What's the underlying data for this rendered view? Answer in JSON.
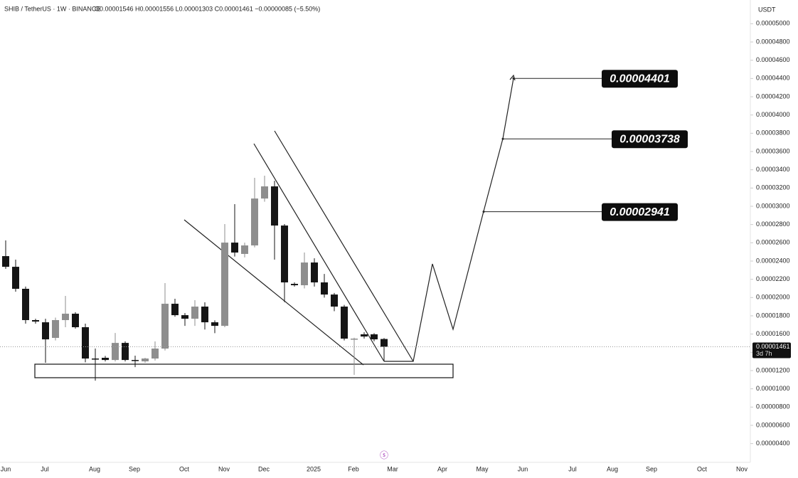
{
  "chart_data": {
    "type": "candlestick",
    "title": "SHIB / TetherUS · 1W · BINANCE",
    "ohlc_label": "O0.00001546 H0.00001556 L0.00001303 C0.00001461 −0.00000085 (−5.50%)",
    "currency": "USDT",
    "up_color": "#8e8e8e",
    "down_color": "#151515",
    "ohlc": [
      [
        2.454e-05,
        2.626e-05,
        2.314e-05,
        2.337e-05
      ],
      [
        2.337e-05,
        2.415e-05,
        2.064e-05,
        2.096e-05
      ],
      [
        2.096e-05,
        2.12e-05,
        1.714e-05,
        1.753e-05
      ],
      [
        1.753e-05,
        1.768e-05,
        1.714e-05,
        1.737e-05
      ],
      [
        1.729e-05,
        1.768e-05,
        1.285e-05,
        1.542e-05
      ],
      [
        1.558e-05,
        1.78e-05,
        1.53e-05,
        1.753e-05
      ],
      [
        1.753e-05,
        2.018e-05,
        1.675e-05,
        1.823e-05
      ],
      [
        1.823e-05,
        1.84e-05,
        1.66e-05,
        1.675e-05
      ],
      [
        1.675e-05,
        1.714e-05,
        1.29e-05,
        1.332e-05
      ],
      [
        1.332e-05,
        1.441e-05,
        1.09e-05,
        1.324e-05
      ],
      [
        1.34e-05,
        1.36e-05,
        1.3e-05,
        1.316e-05
      ],
      [
        1.316e-05,
        1.612e-05,
        1.3e-05,
        1.503e-05
      ],
      [
        1.503e-05,
        1.52e-05,
        1.3e-05,
        1.316e-05
      ],
      [
        1.316e-05,
        1.363e-05,
        1.238e-05,
        1.308e-05
      ],
      [
        1.301e-05,
        1.34e-05,
        1.285e-05,
        1.332e-05
      ],
      [
        1.332e-05,
        1.519e-05,
        1.31e-05,
        1.441e-05
      ],
      [
        1.441e-05,
        2.158e-05,
        1.42e-05,
        1.932e-05
      ],
      [
        1.932e-05,
        1.987e-05,
        1.79e-05,
        1.807e-05
      ],
      [
        1.807e-05,
        1.83e-05,
        1.69e-05,
        1.768e-05
      ],
      [
        1.768e-05,
        1.971e-05,
        1.69e-05,
        1.901e-05
      ],
      [
        1.901e-05,
        1.948e-05,
        1.65e-05,
        1.729e-05
      ],
      [
        1.729e-05,
        1.75e-05,
        1.61e-05,
        1.69e-05
      ],
      [
        1.69e-05,
        2.805e-05,
        1.675e-05,
        2.602e-05
      ],
      [
        2.602e-05,
        3.023e-05,
        2.45e-05,
        2.493e-05
      ],
      [
        2.478e-05,
        2.602e-05,
        2.44e-05,
        2.571e-05
      ],
      [
        2.571e-05,
        3.312e-05,
        2.55e-05,
        3.085e-05
      ],
      [
        3.085e-05,
        3.335e-05,
        3.05e-05,
        3.218e-05
      ],
      [
        3.218e-05,
        3.28e-05,
        2.415e-05,
        2.789e-05
      ],
      [
        2.789e-05,
        2.805e-05,
        1.95e-05,
        2.166e-05
      ],
      [
        2.15e-05,
        2.166e-05,
        2.12e-05,
        2.135e-05
      ],
      [
        2.135e-05,
        2.493e-05,
        2.1e-05,
        2.384e-05
      ],
      [
        2.384e-05,
        2.43e-05,
        2.12e-05,
        2.166e-05
      ],
      [
        2.166e-05,
        2.259e-05,
        2e-05,
        2.033e-05
      ],
      [
        2.033e-05,
        2.05e-05,
        1.85e-05,
        1.901e-05
      ],
      [
        1.901e-05,
        1.92e-05,
        1.53e-05,
        1.55e-05
      ],
      [
        1.542e-05,
        1.56e-05,
        1.153e-05,
        1.55e-05
      ],
      [
        1.597e-05,
        1.62e-05,
        1.55e-05,
        1.573e-05
      ],
      [
        1.597e-05,
        1.61e-05,
        1.52e-05,
        1.542e-05
      ],
      [
        1.546e-05,
        1.556e-05,
        1.303e-05,
        1.461e-05
      ]
    ],
    "last_price": 1.461e-05,
    "countdown": "3d 7h",
    "targets": [
      4.401e-05,
      3.738e-05,
      2.941e-05
    ],
    "ylim": [
      2.1e-06,
      5.26e-05
    ],
    "yticks": [
      {
        "value": 5e-05,
        "label": "0.00005000"
      },
      {
        "value": 4.8e-05,
        "label": "0.00004800"
      },
      {
        "value": 4.6e-05,
        "label": "0.00004600"
      },
      {
        "value": 4.4e-05,
        "label": "0.00004400"
      },
      {
        "value": 4.2e-05,
        "label": "0.00004200"
      },
      {
        "value": 4e-05,
        "label": "0.00004000"
      },
      {
        "value": 3.8e-05,
        "label": "0.00003800"
      },
      {
        "value": 3.6e-05,
        "label": "0.00003600"
      },
      {
        "value": 3.4e-05,
        "label": "0.00003400"
      },
      {
        "value": 3.2e-05,
        "label": "0.00003200"
      },
      {
        "value": 3e-05,
        "label": "0.00003000"
      },
      {
        "value": 2.8e-05,
        "label": "0.00002800"
      },
      {
        "value": 2.6e-05,
        "label": "0.00002600"
      },
      {
        "value": 2.4e-05,
        "label": "0.00002400"
      },
      {
        "value": 2.2e-05,
        "label": "0.00002200"
      },
      {
        "value": 2e-05,
        "label": "0.00002000"
      },
      {
        "value": 1.8e-05,
        "label": "0.00001800"
      },
      {
        "value": 1.6e-05,
        "label": "0.00001600"
      },
      {
        "value": 1.4e-05,
        "label": "0.00001400"
      },
      {
        "value": 1.2e-05,
        "label": "0.00001200"
      },
      {
        "value": 1e-05,
        "label": "0.00001000"
      },
      {
        "value": 8e-06,
        "label": "0.00000800"
      },
      {
        "value": 6e-06,
        "label": "0.00000600"
      },
      {
        "value": 4e-06,
        "label": "0.00000400"
      }
    ],
    "xticks": [
      "Jun",
      "Jul",
      "Aug",
      "Sep",
      "Oct",
      "Nov",
      "Dec",
      "2025",
      "Feb",
      "Mar",
      "Apr",
      "May",
      "Jun",
      "Jul",
      "Aug",
      "Sep",
      "Oct",
      "Nov"
    ]
  }
}
